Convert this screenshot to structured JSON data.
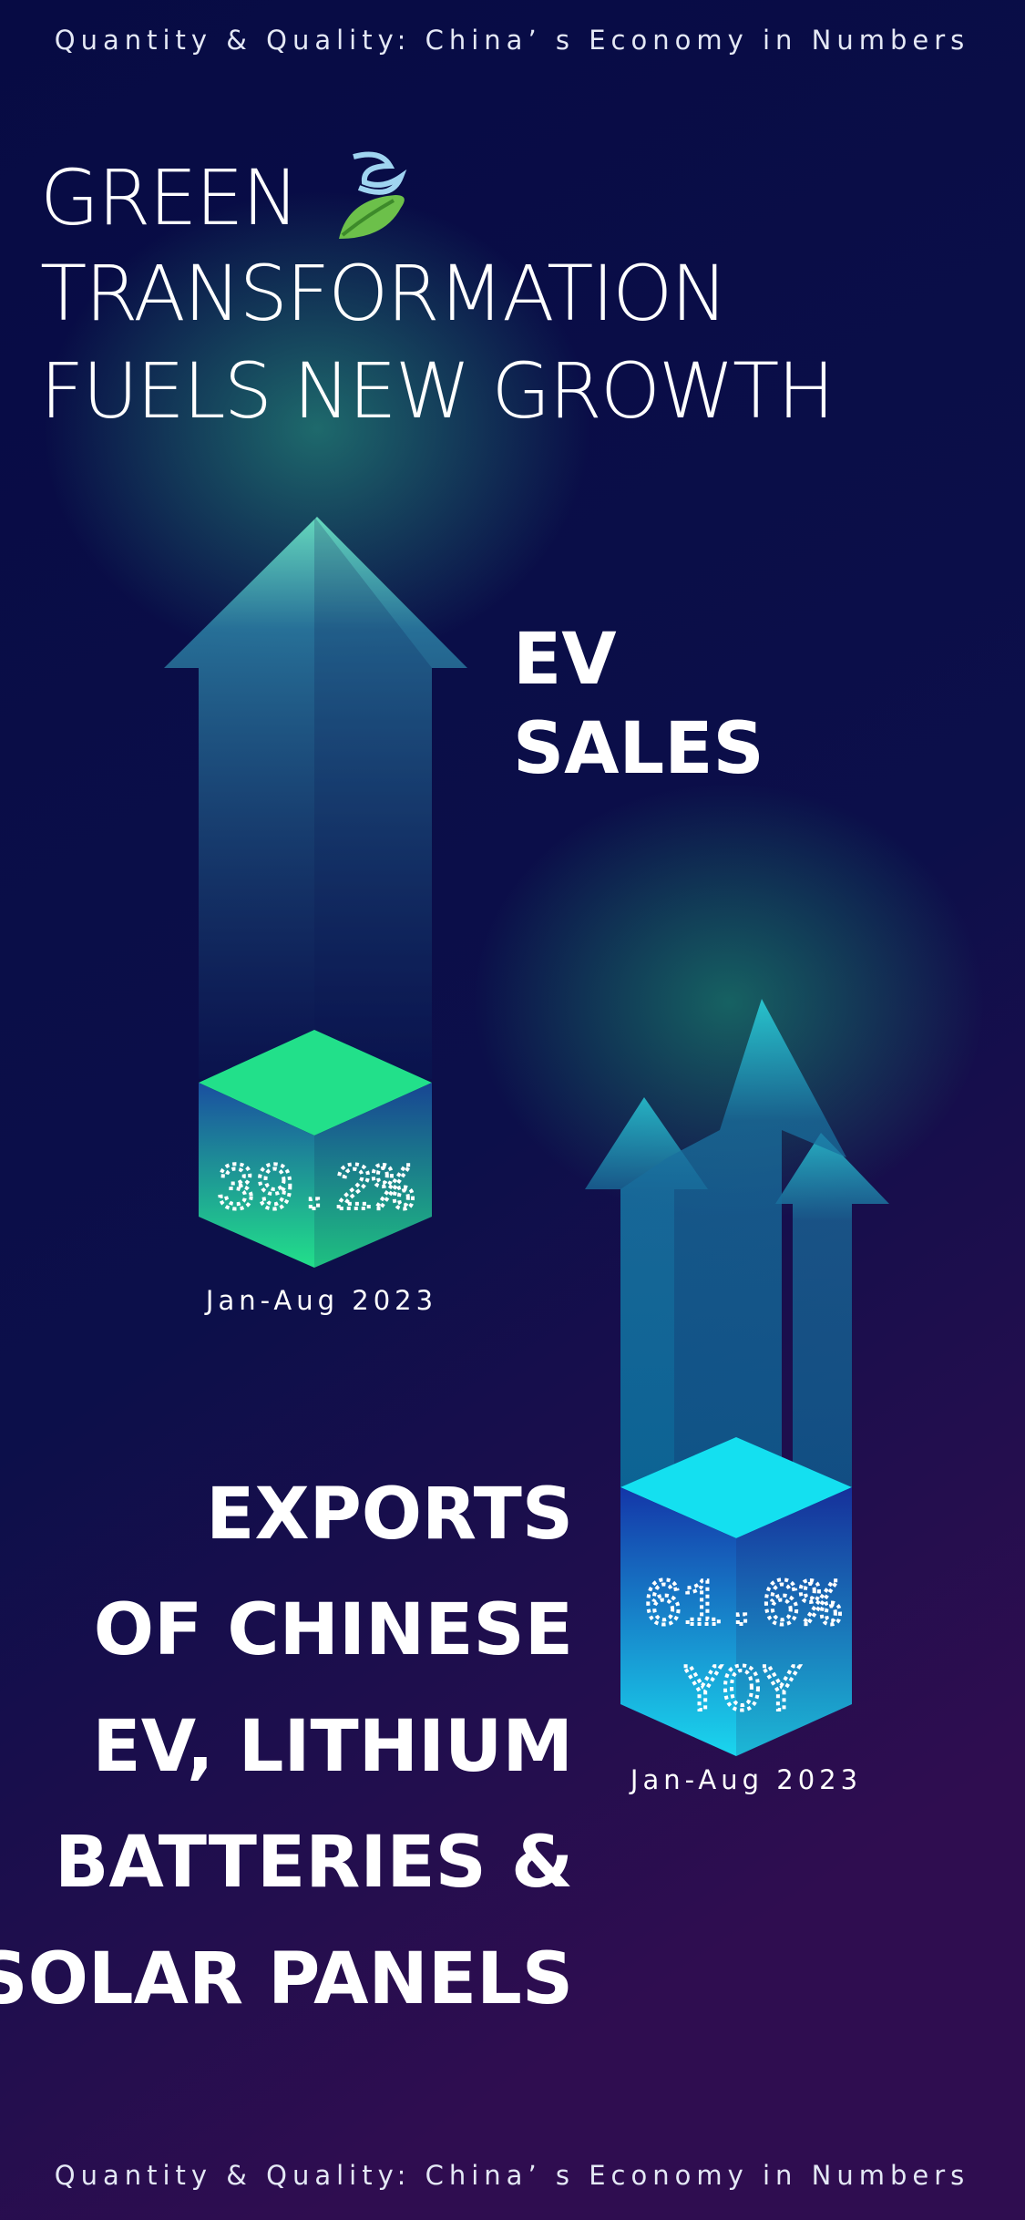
{
  "header": {
    "text": "Quantity & Quality: China’ s Economy in Numbers"
  },
  "title": {
    "lines": [
      "GREEN",
      "TRANSFORMATION",
      "FUELS NEW GROWTH"
    ]
  },
  "ev_sales": {
    "label_lines": [
      "EV",
      "SALES"
    ],
    "value": "39.2%",
    "period": "Jan-Aug 2023"
  },
  "exports": {
    "label_lines": [
      "EXPORTS",
      "OF CHINESE",
      "EV, LITHIUM",
      "BATTERIES &",
      "SOLAR PANELS"
    ],
    "value": "61.6%",
    "value_note": "YOY",
    "period": "Jan-Aug 2023"
  },
  "footer": {
    "text": "Quantity & Quality: China’ s Economy in Numbers"
  }
}
